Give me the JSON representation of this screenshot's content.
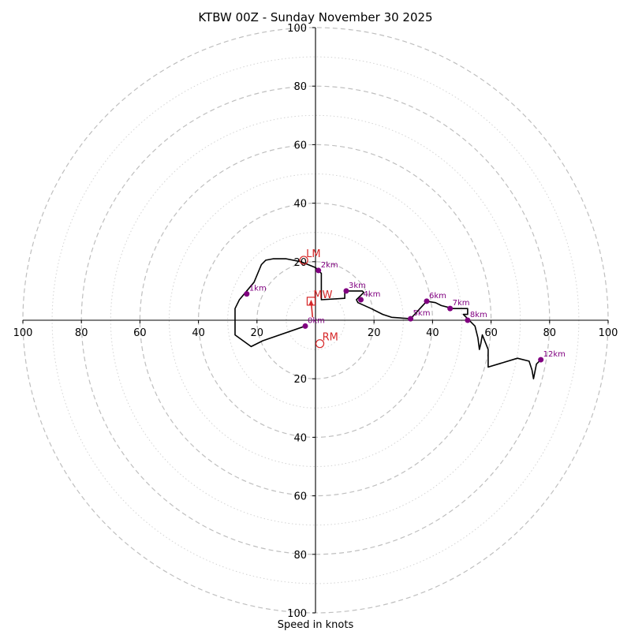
{
  "chart_data": {
    "type": "hodograph",
    "title": "KTBW 00Z - Sunday November 30 2025",
    "xlabel": "Speed in knots",
    "xlim": [
      -100,
      100
    ],
    "ylim": [
      -100,
      100
    ],
    "major_rings": [
      20,
      40,
      60,
      80,
      100
    ],
    "minor_rings": [
      10,
      30,
      50,
      70,
      90
    ],
    "axis_ticks": {
      "x": [
        {
          "value": -100,
          "label": "100"
        },
        {
          "value": -80,
          "label": "80"
        },
        {
          "value": -60,
          "label": "60"
        },
        {
          "value": -40,
          "label": "40"
        },
        {
          "value": -20,
          "label": "20"
        },
        {
          "value": 20,
          "label": "20"
        },
        {
          "value": 40,
          "label": "40"
        },
        {
          "value": 60,
          "label": "60"
        },
        {
          "value": 80,
          "label": "80"
        },
        {
          "value": 100,
          "label": "100"
        }
      ],
      "y": [
        {
          "value": 100,
          "label": "100"
        },
        {
          "value": 80,
          "label": "80"
        },
        {
          "value": 60,
          "label": "60"
        },
        {
          "value": 40,
          "label": "40"
        },
        {
          "value": 20,
          "label": "20"
        },
        {
          "value": -20,
          "label": "20"
        },
        {
          "value": -40,
          "label": "40"
        },
        {
          "value": -60,
          "label": "60"
        },
        {
          "value": -80,
          "label": "80"
        },
        {
          "value": -100,
          "label": "100"
        }
      ]
    },
    "wind_trace_uv": [
      [
        -3.5,
        -2
      ],
      [
        -18,
        -7
      ],
      [
        -22,
        -9
      ],
      [
        -27.5,
        -5
      ],
      [
        -27.5,
        4
      ],
      [
        -26,
        7
      ],
      [
        -21,
        13
      ],
      [
        -18.5,
        19
      ],
      [
        -17,
        20.5
      ],
      [
        -14.5,
        21
      ],
      [
        -10,
        21
      ],
      [
        -5,
        20
      ],
      [
        0,
        18
      ],
      [
        1,
        17
      ],
      [
        2,
        16
      ],
      [
        2,
        7
      ],
      [
        10,
        7.5
      ],
      [
        10,
        10
      ],
      [
        16,
        10
      ],
      [
        16.5,
        9.5
      ],
      [
        14,
        7
      ],
      [
        14.5,
        6
      ],
      [
        19,
        4
      ],
      [
        23,
        2
      ],
      [
        26,
        1
      ],
      [
        32.5,
        0.5
      ],
      [
        38,
        6.5
      ],
      [
        41,
        6
      ],
      [
        43,
        5
      ],
      [
        47,
        4
      ],
      [
        52,
        4
      ],
      [
        52,
        2
      ],
      [
        50.5,
        2
      ],
      [
        54.5,
        -2
      ],
      [
        55.5,
        -6
      ],
      [
        56,
        -10
      ],
      [
        56.5,
        -8
      ],
      [
        57,
        -5
      ],
      [
        59,
        -10
      ],
      [
        59,
        -16
      ],
      [
        69,
        -13
      ],
      [
        73,
        -14
      ],
      [
        74,
        -17
      ],
      [
        74.5,
        -20
      ],
      [
        75.5,
        -15
      ],
      [
        77,
        -13.5
      ]
    ],
    "height_markers": [
      {
        "label": "0km",
        "u": -3.5,
        "v": -2
      },
      {
        "label": "1km",
        "u": -23.5,
        "v": 9
      },
      {
        "label": "2km",
        "u": 1,
        "v": 17
      },
      {
        "label": "3km",
        "u": 10.5,
        "v": 10
      },
      {
        "label": "4km",
        "u": 15.5,
        "v": 7
      },
      {
        "label": "5km",
        "u": 32.5,
        "v": 0.5
      },
      {
        "label": "6km",
        "u": 38,
        "v": 6.5
      },
      {
        "label": "7km",
        "u": 46,
        "v": 4
      },
      {
        "label": "8km",
        "u": 52,
        "v": 0
      },
      {
        "label": "12km",
        "u": 77,
        "v": -13.5
      }
    ],
    "storm_motions": [
      {
        "label": "LM",
        "u": -4,
        "v": 20.5,
        "marker": "circle"
      },
      {
        "label": "MW",
        "u": -1.5,
        "v": 6.5,
        "marker": "square"
      },
      {
        "label": "RM",
        "u": 1.5,
        "v": -8,
        "marker": "circle"
      }
    ],
    "shear_vector": {
      "from": [
        -1,
        1
      ],
      "to": [
        -1.5,
        6.5
      ]
    },
    "colors": {
      "trace": "#000000",
      "height_marker": "#800080",
      "storm_motion": "#d62728",
      "major_ring": "#bfbfbf",
      "minor_ring": "#d3d3d3",
      "axis": "#000000"
    }
  }
}
